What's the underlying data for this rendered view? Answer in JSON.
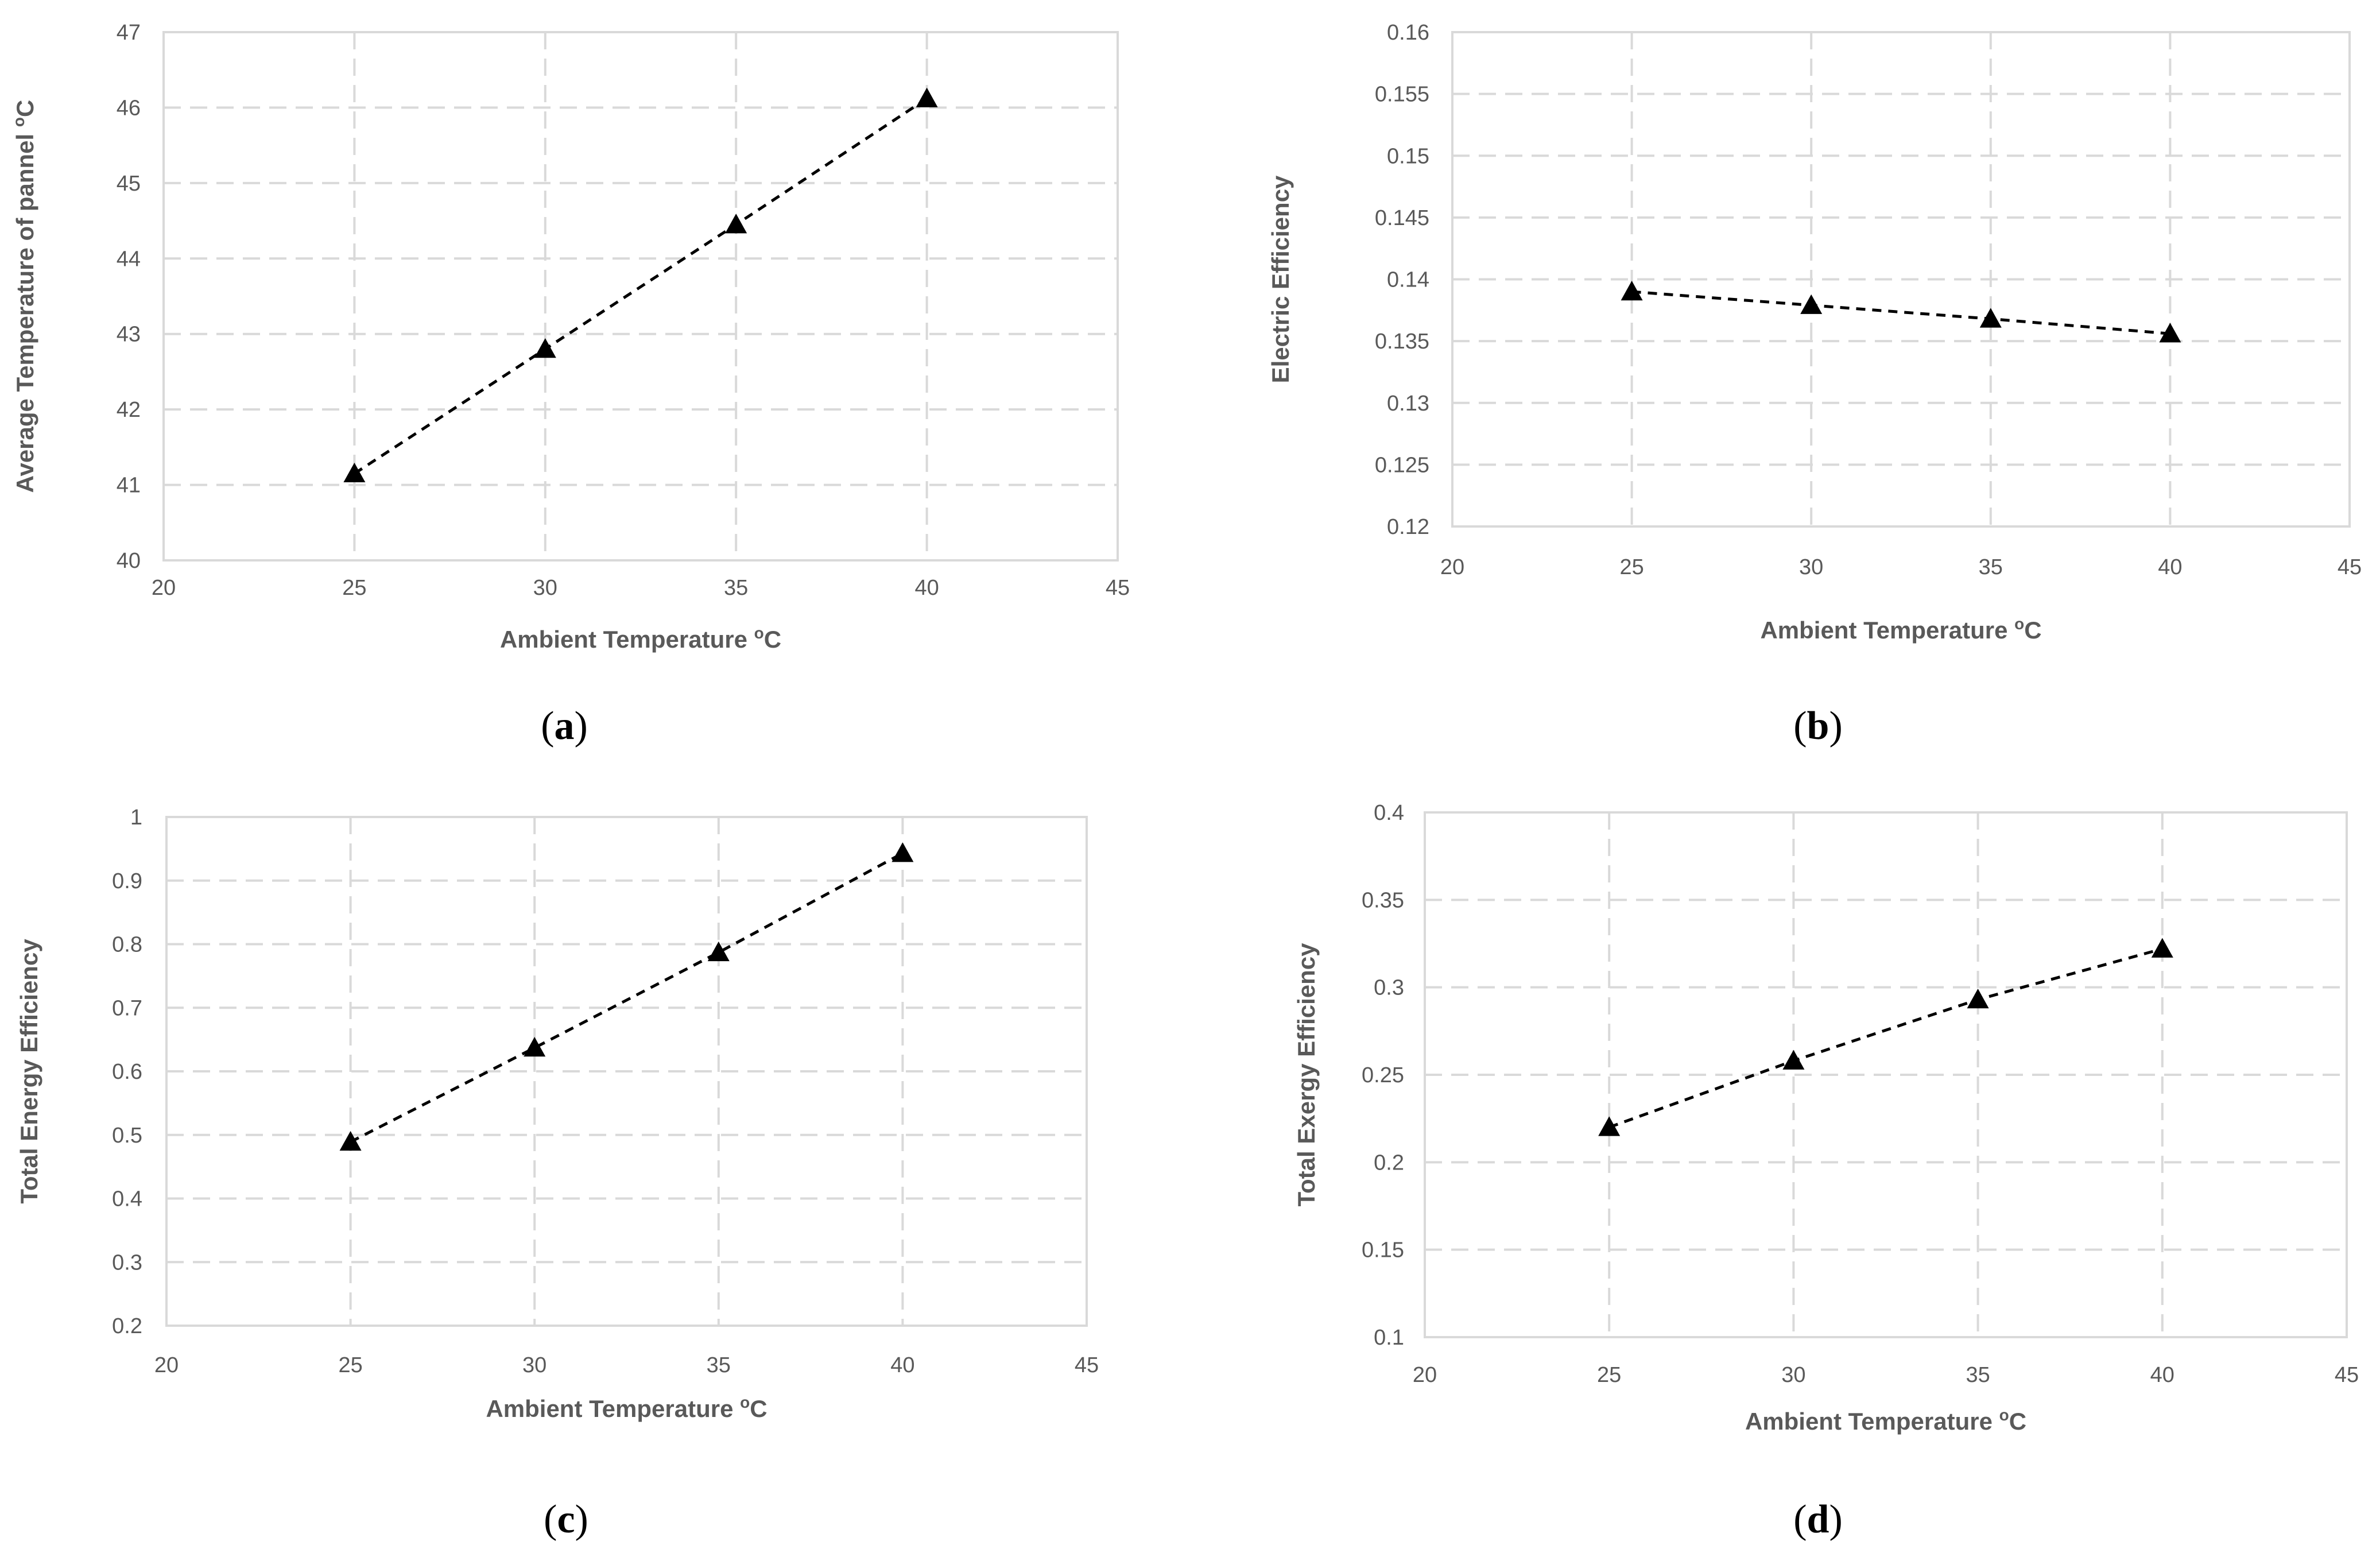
{
  "figure": {
    "panel_labels": [
      {
        "open": "(",
        "letter": "a",
        "close": ")"
      },
      {
        "open": "(",
        "letter": "b",
        "close": ")"
      },
      {
        "open": "(",
        "letter": "c",
        "close": ")"
      },
      {
        "open": "(",
        "letter": "d",
        "close": ")"
      }
    ]
  },
  "chart_data": [
    {
      "type": "line",
      "title": "",
      "xlabel": "Ambient Temperature ",
      "xlabel_sup": "o",
      "xlabel_unit": "C",
      "ylabel": "Average Temperature of pannel ",
      "ylabel_sup": "o",
      "ylabel_unit": "C",
      "xlim": [
        20,
        45
      ],
      "ylim": [
        40,
        47
      ],
      "xticks": [
        "20",
        "25",
        "30",
        "35",
        "40",
        "45"
      ],
      "yticks": [
        "40",
        "41",
        "42",
        "43",
        "44",
        "45",
        "46",
        "47"
      ],
      "grid": true,
      "marker": "triangle",
      "x": [
        25,
        30,
        35,
        40
      ],
      "y": [
        41.15,
        42.8,
        44.45,
        46.12
      ]
    },
    {
      "type": "line",
      "title": "",
      "xlabel": "Ambient Temperature ",
      "xlabel_sup": "o",
      "xlabel_unit": "C",
      "ylabel": "Electric Efficiency",
      "ylabel_sup": "",
      "ylabel_unit": "",
      "xlim": [
        20,
        45
      ],
      "ylim": [
        0.12,
        0.16
      ],
      "xticks": [
        "20",
        "25",
        "30",
        "35",
        "40",
        "45"
      ],
      "yticks": [
        "0.12",
        "0.125",
        "0.13",
        "0.135",
        "0.14",
        "0.145",
        "0.15",
        "0.155",
        "0.16"
      ],
      "grid": true,
      "marker": "triangle",
      "x": [
        25,
        30,
        35,
        40
      ],
      "y": [
        0.139,
        0.1379,
        0.1368,
        0.1356
      ]
    },
    {
      "type": "line",
      "title": "",
      "xlabel": "Ambient Temperature ",
      "xlabel_sup": "o",
      "xlabel_unit": "C",
      "ylabel": "Total Energy Efficiency",
      "ylabel_sup": "",
      "ylabel_unit": "",
      "xlim": [
        20,
        45
      ],
      "ylim": [
        0.2,
        1
      ],
      "xticks": [
        "20",
        "25",
        "30",
        "35",
        "40",
        "45"
      ],
      "yticks": [
        "0.2",
        "0.3",
        "0.4",
        "0.5",
        "0.6",
        "0.7",
        "0.8",
        "0.9",
        "1"
      ],
      "grid": true,
      "marker": "triangle",
      "x": [
        25,
        30,
        35,
        40
      ],
      "y": [
        0.489,
        0.637,
        0.787,
        0.943
      ]
    },
    {
      "type": "line",
      "title": "",
      "xlabel": "Ambient Temperature ",
      "xlabel_sup": "o",
      "xlabel_unit": "C",
      "ylabel": "Total Exergy  Efficiency",
      "ylabel_sup": "",
      "ylabel_unit": "",
      "xlim": [
        20,
        45
      ],
      "ylim": [
        0.1,
        0.4
      ],
      "xticks": [
        "20",
        "25",
        "30",
        "35",
        "40",
        "45"
      ],
      "yticks": [
        "0.1",
        "0.15",
        "0.2",
        "0.25",
        "0.3",
        "0.35",
        "0.4"
      ],
      "grid": true,
      "marker": "triangle",
      "x": [
        25,
        30,
        35,
        40
      ],
      "y": [
        0.22,
        0.258,
        0.293,
        0.322
      ]
    }
  ]
}
